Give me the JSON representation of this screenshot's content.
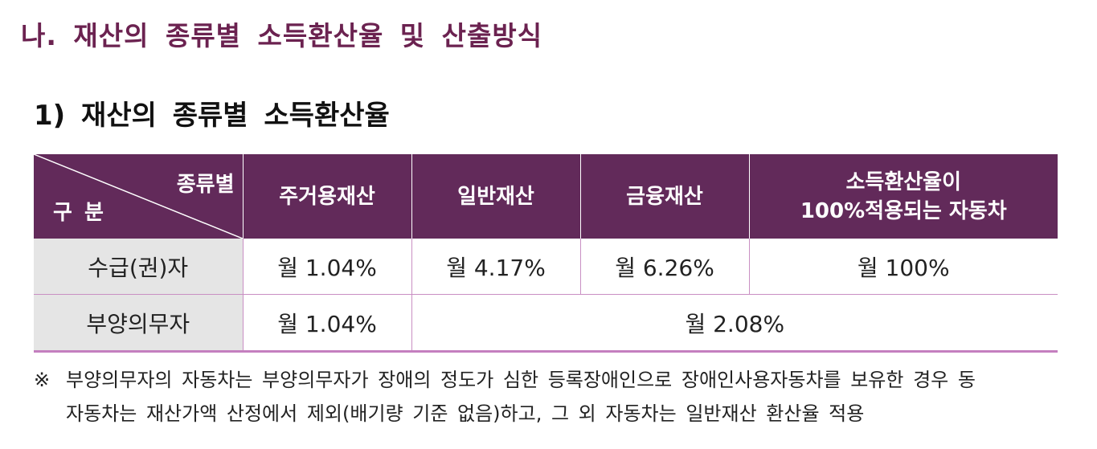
{
  "section_title": "나. 재산의 종류별 소득환산율 및 산출방식",
  "subsection_title": "1) 재산의 종류별 소득환산율",
  "table": {
    "corner": {
      "top": "종류별",
      "bottom": "구 분"
    },
    "columns": [
      [
        "주거용재산"
      ],
      [
        "일반재산"
      ],
      [
        "금융재산"
      ],
      [
        "소득환산율이",
        "100%적용되는 자동차"
      ]
    ],
    "rows": [
      [
        "수급(권)자",
        "월 1.04%",
        "월 4.17%",
        "월 6.26%",
        "월 100%"
      ],
      [
        "부양의무자",
        "월 1.04%",
        "월 2.08%"
      ]
    ]
  },
  "note": {
    "mark": "※",
    "lines": [
      "부양의무자의 자동차는 부양의무자가 장애의 정도가 심한 등록장애인으로 장애인사용자동차를 보유한 경우 동",
      "자동차는 재산가액 산정에서 제외(배기량 기준 없음)하고, 그 외 자동차는 일반재산 환산율 적용"
    ]
  }
}
